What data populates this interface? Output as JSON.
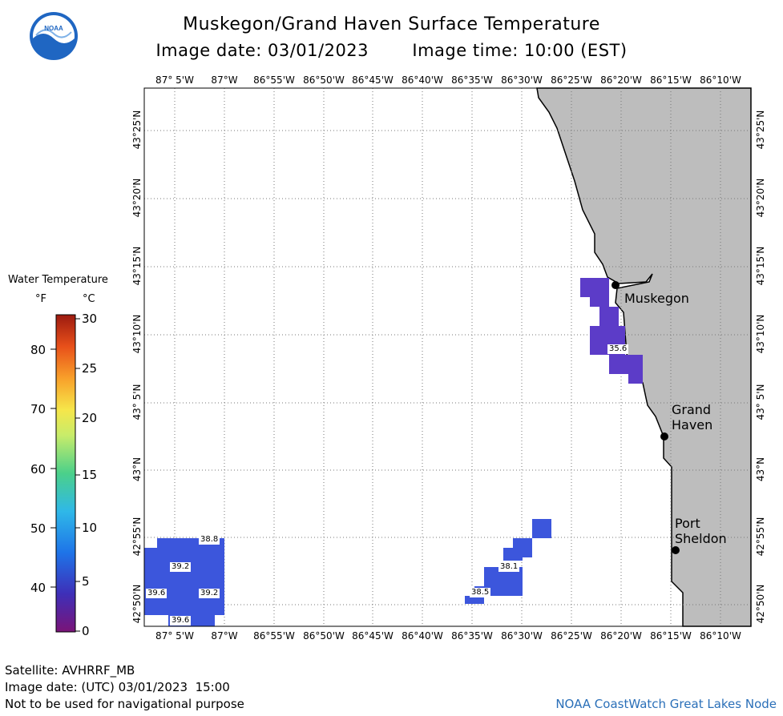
{
  "header": {
    "title": "Muskegon/Grand Haven Surface Temperature",
    "image_date": "Image date: 03/01/2023",
    "image_time": "Image time: 10:00 (EST)"
  },
  "logo": {
    "text": "NOAA"
  },
  "map": {
    "lon_labels": [
      "87° 5'W",
      "87°W",
      "86°55'W",
      "86°50'W",
      "86°45'W",
      "86°40'W",
      "86°35'W",
      "86°30'W",
      "86°25'W",
      "86°20'W",
      "86°15'W",
      "86°10'W"
    ],
    "lat_labels": [
      "43°25'N",
      "43°20'N",
      "43°15'N",
      "43°10'N",
      "43° 5'N",
      "43°N",
      "42°55'N",
      "42°50'N"
    ],
    "cities": {
      "muskegon": "Muskegon",
      "grand_haven_1": "Grand",
      "grand_haven_2": "Haven",
      "port_sheldon_1": "Port",
      "port_sheldon_2": "Sheldon"
    },
    "values": {
      "v1": "38.8",
      "v2": "39.2",
      "v3": "39.6",
      "v4": "39.2",
      "v5": "39.6",
      "v6": "38.1",
      "v7": "38.5",
      "v8": "35.6"
    },
    "colors": {
      "land": "#bdbdbd",
      "cold_water": "#5c3cc8",
      "cool_water": "#3c56dc"
    }
  },
  "legend": {
    "title": "Water Temperature",
    "unit_f": "°F",
    "unit_c": "°C",
    "ticks_f": [
      "80",
      "70",
      "60",
      "50",
      "40"
    ],
    "ticks_c": [
      "30",
      "25",
      "20",
      "15",
      "10",
      "5",
      "0"
    ]
  },
  "footer": {
    "satellite": "Satellite: AVHRRF_MB",
    "utc_date": "Image date: (UTC) 03/01/2023  15:00",
    "disclaimer": "Not to be used for navigational purpose",
    "credit": "NOAA CoastWatch Great Lakes Node"
  }
}
